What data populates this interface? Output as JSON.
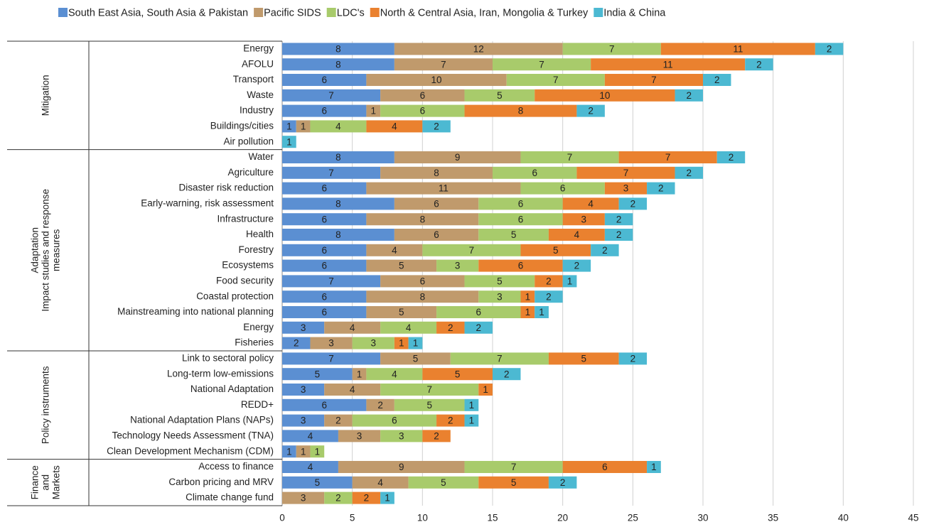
{
  "chart_data": {
    "type": "stacked-barh",
    "groups": [
      {
        "label": [
          "Mitigation"
        ],
        "categories": [
          "Energy",
          "AFOLU",
          "Transport",
          "Waste",
          "Industry",
          "Buildings/cities",
          "Air pollution"
        ]
      },
      {
        "label": [
          "Adaptation",
          "Impact studies and response",
          "measures"
        ],
        "categories": [
          "Water",
          "Agriculture",
          "Disaster risk reduction",
          "Early-warning, risk assessment",
          "Infrastructure",
          "Health",
          "Forestry",
          "Ecosystems",
          "Food security",
          "Coastal protection",
          "Mainstreaming into national planning",
          "Energy",
          "Fisheries"
        ]
      },
      {
        "label": [
          "Policy instruments"
        ],
        "categories": [
          "Link to sectoral policy",
          "Long-term low-emissions",
          "National Adaptation",
          "REDD+",
          "National Adaptation Plans (NAPs)",
          "Technology Needs Assessment (TNA)",
          "Clean Development Mechanism (CDM)"
        ]
      },
      {
        "label": [
          "Finance",
          "and",
          "Markets"
        ],
        "categories": [
          "Access to finance",
          "Carbon pricing and MRV",
          "Climate change fund"
        ]
      }
    ],
    "series": [
      {
        "name": "South East Asia, South Asia & Pakistan",
        "color": "#5b8fd2",
        "values": [
          8,
          8,
          6,
          7,
          6,
          1,
          null,
          8,
          7,
          6,
          8,
          6,
          8,
          6,
          6,
          7,
          6,
          6,
          3,
          2,
          7,
          5,
          3,
          6,
          3,
          4,
          1,
          4,
          5,
          null
        ]
      },
      {
        "name": "Pacific SIDS",
        "color": "#c09a6c",
        "values": [
          12,
          7,
          10,
          6,
          1,
          1,
          null,
          9,
          8,
          11,
          6,
          8,
          6,
          4,
          5,
          6,
          8,
          5,
          4,
          3,
          5,
          1,
          4,
          2,
          2,
          3,
          1,
          9,
          4,
          3
        ]
      },
      {
        "name": "LDC's",
        "color": "#a8cb6b",
        "values": [
          7,
          7,
          7,
          5,
          6,
          4,
          null,
          7,
          6,
          6,
          6,
          6,
          5,
          7,
          3,
          5,
          3,
          6,
          4,
          3,
          7,
          4,
          7,
          5,
          6,
          3,
          1,
          7,
          5,
          2
        ]
      },
      {
        "name": "North & Central Asia, Iran, Mongolia & Turkey",
        "color": "#ea812f",
        "values": [
          11,
          11,
          7,
          10,
          8,
          4,
          null,
          7,
          7,
          3,
          4,
          3,
          4,
          5,
          6,
          2,
          1,
          1,
          2,
          1,
          5,
          5,
          1,
          null,
          2,
          2,
          null,
          6,
          5,
          2
        ]
      },
      {
        "name": "India & China",
        "color": "#4cb9d2",
        "values": [
          2,
          2,
          2,
          2,
          2,
          2,
          1,
          2,
          2,
          2,
          2,
          2,
          2,
          2,
          2,
          1,
          2,
          1,
          2,
          1,
          2,
          2,
          null,
          1,
          1,
          null,
          null,
          1,
          2,
          1
        ]
      }
    ],
    "xlim": [
      0,
      45
    ],
    "xticks": [
      0,
      5,
      10,
      15,
      20,
      25,
      30,
      35,
      40,
      45
    ],
    "grid": true,
    "legend": "top"
  }
}
